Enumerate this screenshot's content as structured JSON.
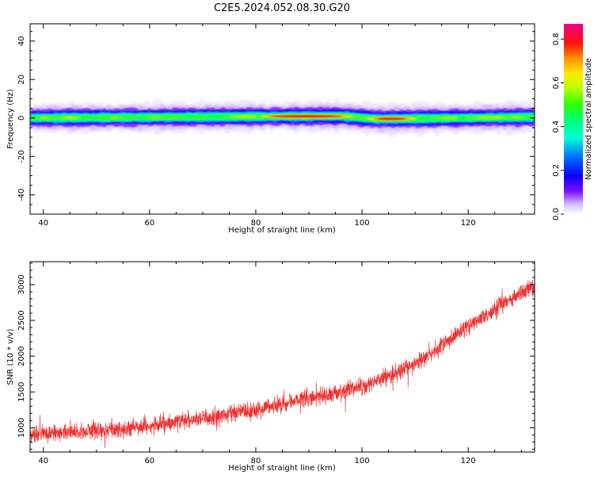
{
  "title": "C2E5.2024.052.08.30.G20",
  "colors": {
    "snr_line": "#f03030",
    "axis": "#000000",
    "background": "#ffffff"
  },
  "chart_data": [
    {
      "type": "heatmap",
      "title": "C2E5.2024.052.08.30.G20",
      "xlabel": "Height of straight line (km)",
      "ylabel": "Frequency (Hz)",
      "xlim": [
        37.5,
        132.5
      ],
      "ylim": [
        -50,
        49
      ],
      "x_ticks": [
        40,
        60,
        80,
        100,
        120
      ],
      "y_ticks": [
        -40,
        -20,
        0,
        20,
        40
      ],
      "grid": false,
      "band_center_freq": [
        {
          "height": 37.5,
          "freq": 0
        },
        {
          "height": 96,
          "freq": 1
        },
        {
          "height": 103,
          "freq": -0.5
        },
        {
          "height": 132.5,
          "freq": 0.5
        }
      ],
      "band_halfwidth_hz": 4,
      "peak_regions": [
        {
          "height_from": 82,
          "height_to": 97,
          "amplitude": 0.8
        },
        {
          "height_from": 102,
          "height_to": 109,
          "amplitude": 0.8
        }
      ],
      "colorbar": {
        "label": "Normalized spectral amplitude",
        "range": [
          0,
          0.87
        ],
        "ticks": [
          "0.0",
          "0.2",
          "0.4",
          "0.6",
          "0.8"
        ],
        "colormap": "gist_ncar-like"
      }
    },
    {
      "type": "line",
      "xlabel": "Height of straight line (km)",
      "ylabel": "SNR (10 * v/v)",
      "xlim": [
        37.5,
        132.5
      ],
      "ylim": [
        660,
        3320
      ],
      "x_ticks": [
        40,
        60,
        80,
        100,
        120
      ],
      "y_ticks": [
        1000,
        1500,
        2000,
        2500,
        3000
      ],
      "grid": false,
      "series": [
        {
          "x": [
            37.5,
            40,
            45,
            50,
            55,
            60,
            65,
            70,
            75,
            80,
            85,
            90,
            95,
            100,
            105,
            110,
            115,
            120,
            125,
            130,
            132.5
          ],
          "y": [
            900,
            920,
            940,
            960,
            990,
            1030,
            1080,
            1130,
            1190,
            1260,
            1330,
            1410,
            1490,
            1580,
            1720,
            1890,
            2150,
            2420,
            2650,
            2880,
            3000
          ],
          "noise_amplitude": 130
        }
      ]
    }
  ]
}
